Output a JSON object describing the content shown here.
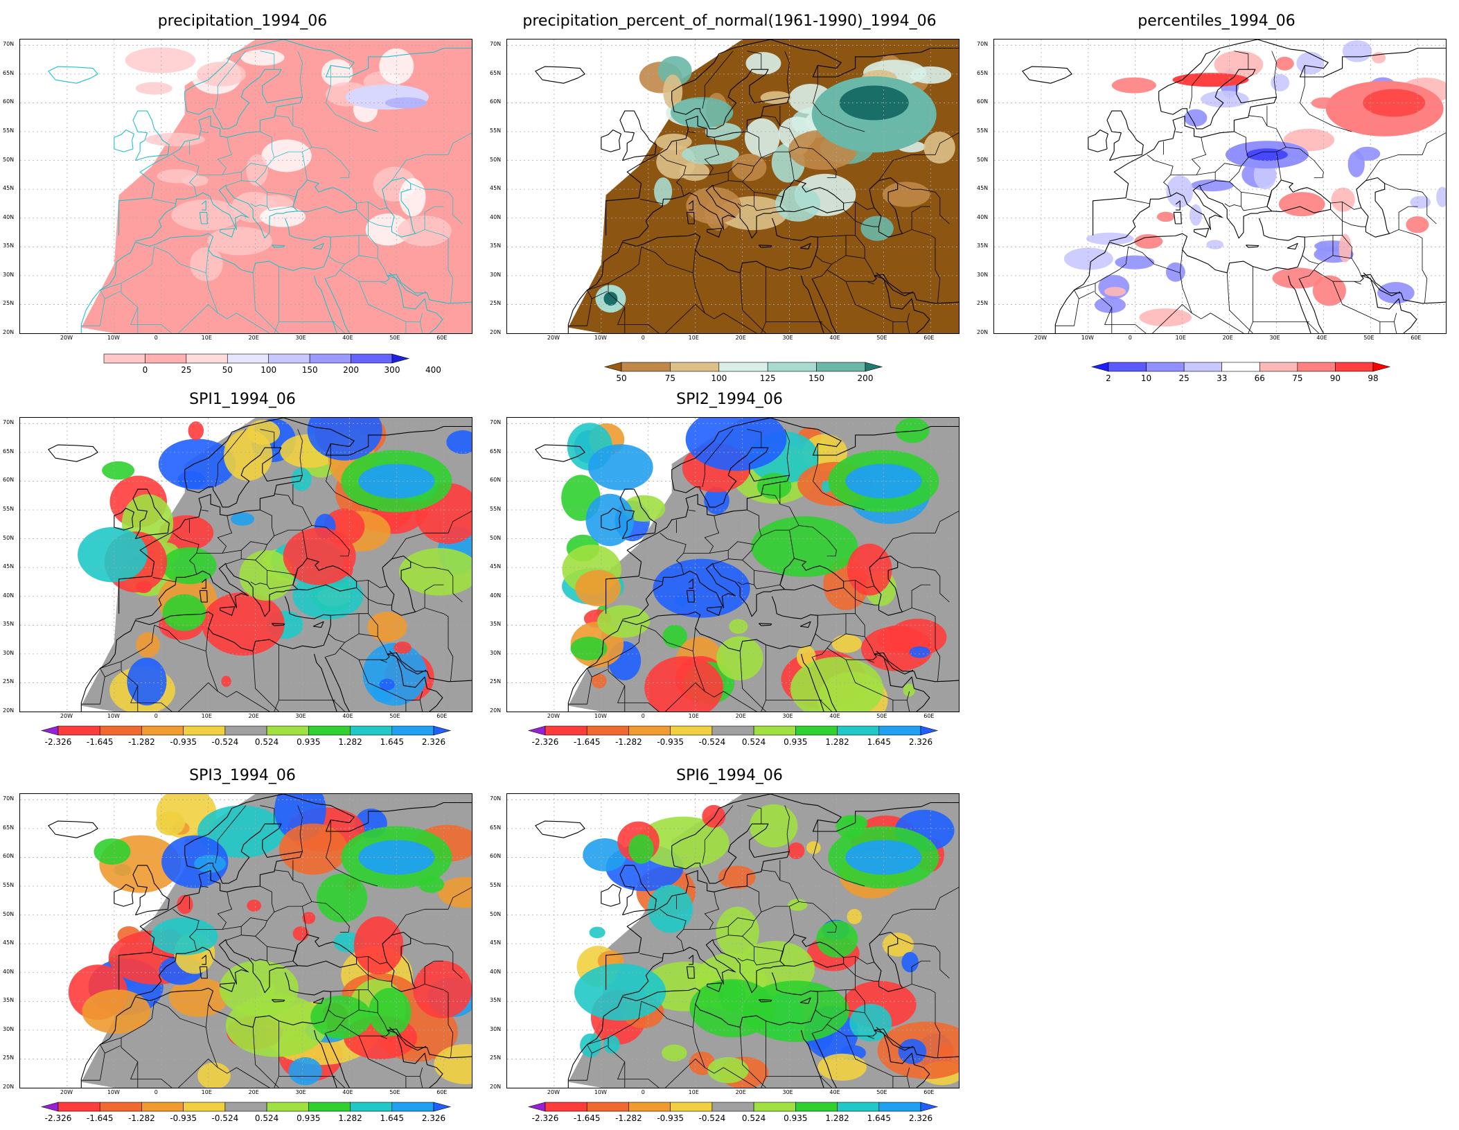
{
  "panels": [
    {
      "id": "precip",
      "title": "precipitation_1994_06",
      "colorbar": {
        "labels": [
          "0",
          "25",
          "50",
          "100",
          "150",
          "200",
          "300",
          "400"
        ],
        "colors": [
          "#ffc8c8",
          "#ffb0b0",
          "#ffdcdc",
          "#e6e6ff",
          "#c8c8ff",
          "#9a9aff",
          "#6464ff",
          "#2020e0"
        ],
        "arrow_left": false,
        "arrow_right": true
      },
      "fill_color": "#ffa0a0",
      "wet_color": "#b4b4ff",
      "boundary_color": "#20c0c8"
    },
    {
      "id": "percent",
      "title": "precipitation_percent_of_normal(1961-1990)_1994_06",
      "colorbar": {
        "labels": [
          "50",
          "75",
          "100",
          "125",
          "150",
          "200"
        ],
        "colors": [
          "#9a5a10",
          "#c08848",
          "#dcc088",
          "#d8f0e8",
          "#a8dcd0",
          "#6ab8a8",
          "#207a70"
        ],
        "arrow_left": true,
        "arrow_right": true
      },
      "dry_color": "#8c5512",
      "wet_color": "#1a6e68",
      "boundary_color": "#000000"
    },
    {
      "id": "percentiles",
      "title": "percentiles_1994_06",
      "colorbar": {
        "labels": [
          "2",
          "10",
          "25",
          "33",
          "66",
          "75",
          "90",
          "98"
        ],
        "colors": [
          "#2020ff",
          "#5a5aff",
          "#9090ff",
          "#c8c8ff",
          "#ffffff",
          "#ffb8b8",
          "#ff8080",
          "#ff4040",
          "#ff0000"
        ],
        "arrow_left": true,
        "arrow_right": true
      },
      "dry_color": "#ff4a4a",
      "wet_color": "#4848ff",
      "boundary_color": "#000000"
    },
    {
      "id": "spi1",
      "title": "SPI1_1994_06",
      "colorbar": "spi",
      "seed": 11
    },
    {
      "id": "spi2",
      "title": "SPI2_1994_06",
      "colorbar": "spi",
      "seed": 23
    },
    {
      "id": "spi3",
      "title": "SPI3_1994_06",
      "colorbar": "spi",
      "seed": 37
    },
    {
      "id": "spi6",
      "title": "SPI6_1994_06",
      "colorbar": "spi",
      "seed": 53
    }
  ],
  "spi_colorbar": {
    "labels": [
      "-2.326",
      "-1.645",
      "-1.282",
      "-0.935",
      "-0.524",
      "0.524",
      "0.935",
      "1.282",
      "1.645",
      "2.326"
    ],
    "colors": [
      "#9a20d8",
      "#ff3c3c",
      "#f06a30",
      "#f09a30",
      "#f0d040",
      "#a0a0a0",
      "#a0e040",
      "#30d030",
      "#20c8c8",
      "#20a0f0",
      "#2060ff"
    ],
    "arrow_left": true,
    "arrow_right": true
  },
  "lat_labels": [
    "70N",
    "65N",
    "60N",
    "55N",
    "50N",
    "45N",
    "40N",
    "35N",
    "30N",
    "25N",
    "20N"
  ],
  "lon_labels": [
    "20W",
    "10W",
    "0",
    "10E",
    "20E",
    "30E",
    "40E",
    "50E",
    "60E"
  ],
  "map_extent": {
    "lon": [
      -30,
      66
    ],
    "lat": [
      20,
      71
    ]
  }
}
